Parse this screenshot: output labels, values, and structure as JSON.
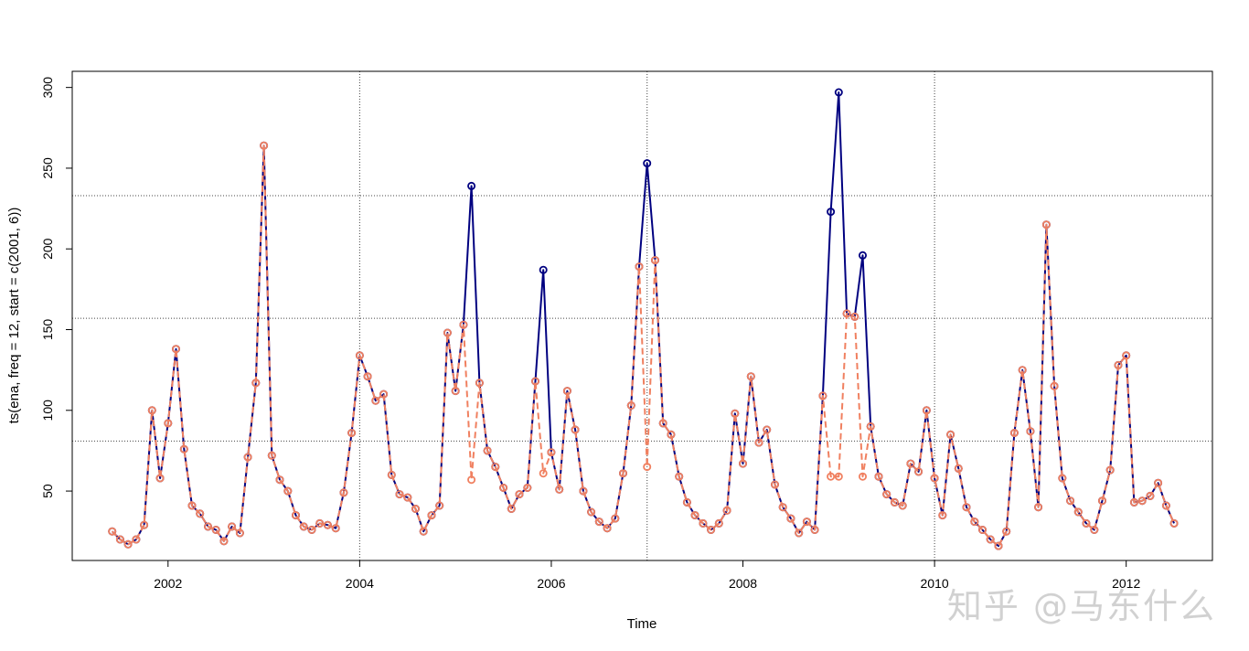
{
  "chart_data": {
    "type": "line",
    "xlabel": "Time",
    "ylabel": "ts(ena, freq = 12, start = c(2001, 6))",
    "start": [
      2001,
      6
    ],
    "frequency": 12,
    "xlim": [
      2001.0,
      2012.9
    ],
    "ylim": [
      7,
      310
    ],
    "x_ticks": [
      2002,
      2004,
      2006,
      2008,
      2010,
      2012
    ],
    "y_ticks": [
      50,
      100,
      150,
      200,
      250,
      300
    ],
    "vgrid": [
      2004.0,
      2007.0,
      2010.0
    ],
    "hgrid": [
      81,
      157,
      233
    ],
    "series": [
      {
        "color": "#000080",
        "style": "solid",
        "values": [
          25,
          20,
          17,
          20,
          29,
          100,
          58,
          92,
          138,
          76,
          41,
          36,
          28,
          26,
          19,
          28,
          24,
          71,
          117,
          264,
          72,
          57,
          50,
          35,
          28,
          26,
          30,
          29,
          27,
          49,
          86,
          134,
          121,
          106,
          110,
          60,
          48,
          46,
          39,
          25,
          35,
          41,
          148,
          112,
          153,
          239,
          117,
          75,
          65,
          52,
          39,
          48,
          52,
          118,
          187,
          74,
          51,
          112,
          88,
          50,
          37,
          31,
          27,
          33,
          61,
          103,
          189,
          253,
          193,
          92,
          85,
          59,
          43,
          35,
          30,
          26,
          30,
          38,
          98,
          67,
          121,
          80,
          88,
          54,
          40,
          33,
          24,
          31,
          26,
          109,
          223,
          297,
          160,
          158,
          196,
          90,
          59,
          48,
          43,
          41,
          67,
          62,
          100,
          58,
          35,
          85,
          64,
          40,
          31,
          26,
          20,
          16,
          25,
          86,
          125,
          87,
          40,
          215,
          115,
          58,
          44,
          37,
          30,
          26,
          44,
          63,
          128,
          134,
          43,
          44,
          47,
          55,
          41,
          30
        ]
      },
      {
        "color": "#F08060",
        "style": "dashed",
        "values": [
          25,
          20,
          17,
          20,
          29,
          100,
          58,
          92,
          138,
          76,
          41,
          36,
          28,
          26,
          19,
          28,
          24,
          71,
          117,
          264,
          72,
          57,
          50,
          35,
          28,
          26,
          30,
          29,
          27,
          49,
          86,
          134,
          121,
          106,
          110,
          60,
          48,
          46,
          39,
          25,
          35,
          41,
          148,
          112,
          153,
          57,
          117,
          75,
          65,
          52,
          39,
          48,
          52,
          118,
          61,
          74,
          51,
          112,
          88,
          50,
          37,
          31,
          27,
          33,
          61,
          103,
          189,
          65,
          193,
          92,
          85,
          59,
          43,
          35,
          30,
          26,
          30,
          38,
          98,
          67,
          121,
          80,
          88,
          54,
          40,
          33,
          24,
          31,
          26,
          109,
          59,
          59,
          160,
          158,
          59,
          90,
          59,
          48,
          43,
          41,
          67,
          62,
          100,
          58,
          35,
          85,
          64,
          40,
          31,
          26,
          20,
          16,
          25,
          86,
          125,
          87,
          40,
          215,
          115,
          58,
          44,
          37,
          30,
          26,
          44,
          63,
          128,
          134,
          43,
          44,
          47,
          55,
          41,
          30
        ]
      }
    ]
  }
}
